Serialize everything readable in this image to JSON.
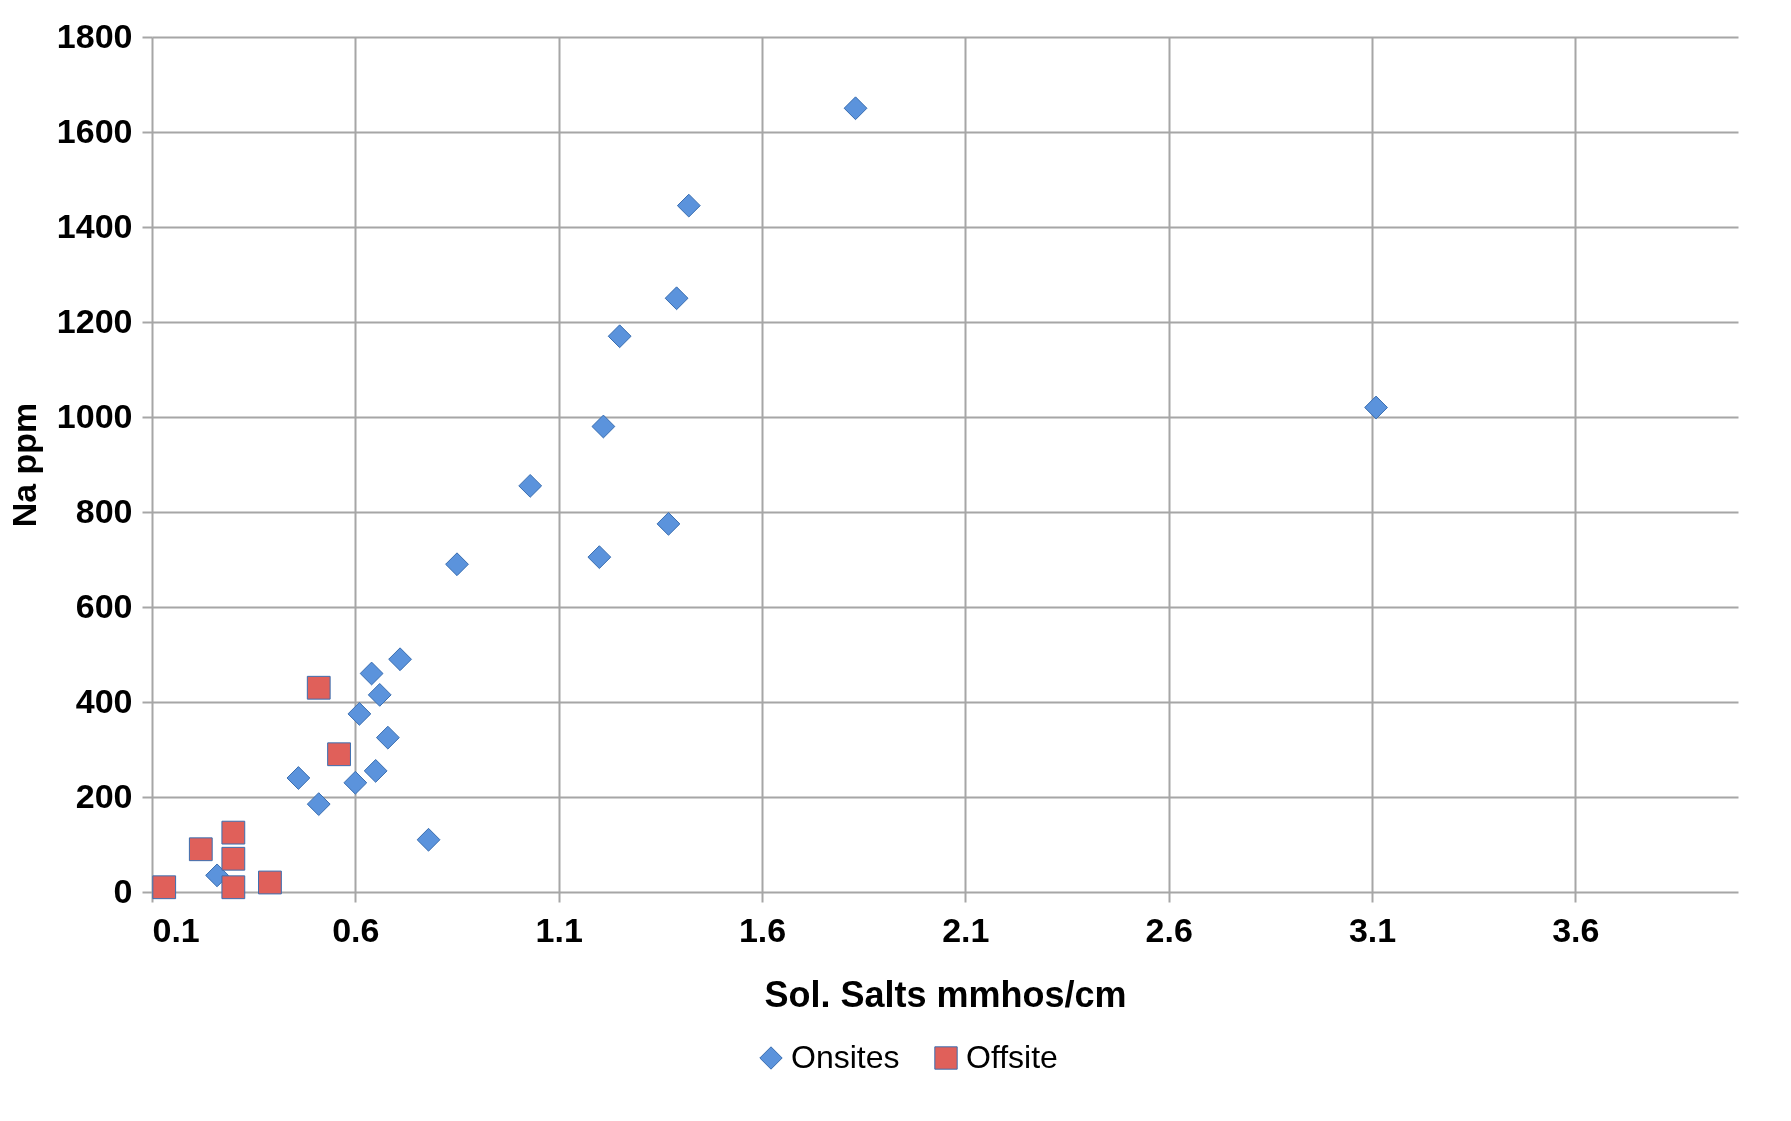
{
  "chart_data": {
    "type": "scatter",
    "xlabel": "Sol. Salts mmhos/cm",
    "ylabel": "Na ppm",
    "xlim": [
      0.1,
      4.0
    ],
    "xticks": [
      0.1,
      0.6,
      1.1,
      1.6,
      2.1,
      2.6,
      3.1,
      3.6
    ],
    "ylim": [
      0,
      1800
    ],
    "yticks": [
      0,
      200,
      400,
      600,
      800,
      1000,
      1200,
      1400,
      1600,
      1800
    ],
    "grid": true,
    "legend": "bottom",
    "series": [
      {
        "name": "Onsites",
        "color": "#5b93dc",
        "marker": "diamond",
        "x": [
          1.83,
          1.42,
          1.39,
          1.25,
          1.21,
          1.03,
          1.37,
          1.2,
          0.85,
          3.11,
          0.71,
          0.64,
          0.66,
          0.61,
          0.68,
          0.46,
          0.65,
          0.6,
          0.51,
          0.78,
          0.26
        ],
        "values": [
          1650,
          1445,
          1250,
          1170,
          980,
          855,
          775,
          705,
          690,
          1020,
          490,
          460,
          415,
          375,
          325,
          240,
          255,
          230,
          185,
          110,
          35
        ]
      },
      {
        "name": "Offsite",
        "color": "#e0605a",
        "marker": "square",
        "x": [
          0.51,
          0.56,
          0.13,
          0.22,
          0.3,
          0.3,
          0.3,
          0.39
        ],
        "values": [
          430,
          290,
          10,
          90,
          125,
          70,
          10,
          20
        ]
      }
    ]
  }
}
